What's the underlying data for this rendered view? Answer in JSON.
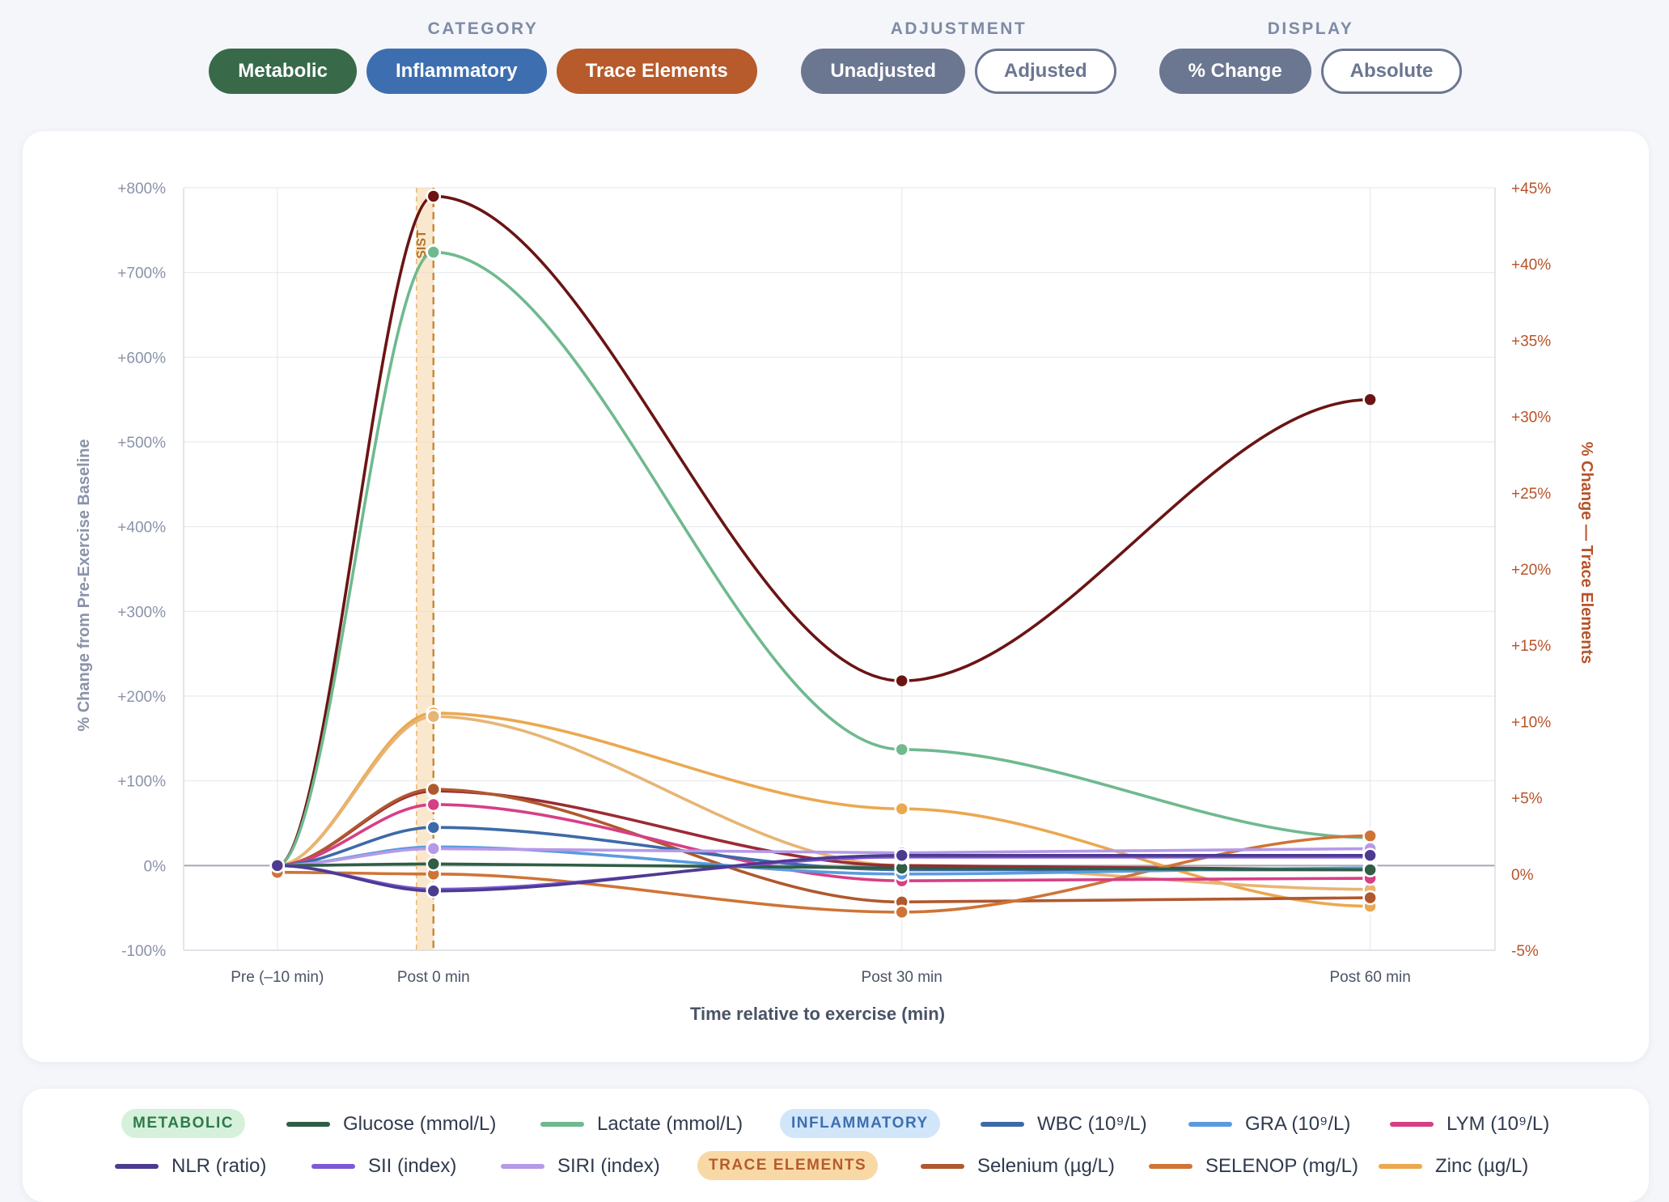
{
  "controls": {
    "category": {
      "title": "CATEGORY",
      "buttons": [
        {
          "label": "Metabolic",
          "color": "#386a4a"
        },
        {
          "label": "Inflammatory",
          "color": "#3d6fb0"
        },
        {
          "label": "Trace Elements",
          "color": "#b75b2c"
        }
      ]
    },
    "adjustment": {
      "title": "ADJUSTMENT",
      "buttons": [
        {
          "label": "Unadjusted",
          "state": "active"
        },
        {
          "label": "Adjusted",
          "state": "inactive"
        }
      ]
    },
    "display": {
      "title": "DISPLAY",
      "buttons": [
        {
          "label": "% Change",
          "state": "active"
        },
        {
          "label": "Absolute",
          "state": "inactive"
        }
      ]
    },
    "active_color": "#6b7691"
  },
  "chart_data": {
    "type": "line",
    "xlabel": "Time relative to exercise (min)",
    "ylabel_left": "% Change from Pre-Exercise Baseline",
    "ylabel_right": "% Change — Trace Elements",
    "categories": [
      "Pre (–10 min)",
      "Post 0 min",
      "Post 30 min",
      "Post 60 min"
    ],
    "x_minutes": [
      -10,
      0,
      30,
      60
    ],
    "ylim_left": [
      -100,
      800
    ],
    "ylim_right": [
      -5,
      45
    ],
    "left_ticks": [
      "-100%",
      "0%",
      "+100%",
      "+200%",
      "+300%",
      "+400%",
      "+500%",
      "+600%",
      "+700%",
      "+800%"
    ],
    "left_tick_values": [
      -100,
      0,
      100,
      200,
      300,
      400,
      500,
      600,
      700,
      800
    ],
    "right_ticks": [
      "-5%",
      "0%",
      "+5%",
      "+10%",
      "+15%",
      "+20%",
      "+25%",
      "+30%",
      "+35%",
      "+40%",
      "+45%"
    ],
    "right_tick_values": [
      -5,
      0,
      5,
      10,
      15,
      20,
      25,
      30,
      35,
      40,
      45
    ],
    "annotation": {
      "label": "SIST",
      "x_minutes": 0
    },
    "grid": true,
    "series": [
      {
        "name": "Unlabeled series (dark red)",
        "axis": "left",
        "color": "#6b1414",
        "values": [
          0,
          790,
          218,
          550
        ]
      },
      {
        "name": "Lactate (mmol/L)",
        "axis": "left",
        "color": "#6fb98f",
        "values": [
          0,
          724,
          137,
          33
        ]
      },
      {
        "name": "Zinc (µg/L)",
        "axis": "left",
        "color": "#eba850",
        "values": [
          0,
          180,
          67,
          -48
        ]
      },
      {
        "name": "Unlabeled series (light orange)",
        "axis": "left",
        "color": "#e8b474",
        "values": [
          0,
          176,
          0,
          -28
        ]
      },
      {
        "name": "Unlabeled series (maroon)",
        "axis": "left",
        "color": "#9b2b35",
        "values": [
          0,
          88,
          0,
          -5
        ]
      },
      {
        "name": "Selenium (µg/L)",
        "axis": "left",
        "color": "#b0582e",
        "values": [
          0,
          90,
          -43,
          -38
        ]
      },
      {
        "name": "SELENOP (mg/L)",
        "axis": "left",
        "color": "#cf7436",
        "values": [
          -8,
          -10,
          -55,
          35
        ]
      },
      {
        "name": "LYM (10⁹/L)",
        "axis": "left",
        "color": "#d63f86",
        "values": [
          0,
          72,
          -18,
          -15
        ]
      },
      {
        "name": "WBC (10⁹/L)",
        "axis": "left",
        "color": "#3d6aa8",
        "values": [
          0,
          45,
          -5,
          -5
        ]
      },
      {
        "name": "GRA (10⁹/L)",
        "axis": "left",
        "color": "#5b9ae0",
        "values": [
          0,
          22,
          -10,
          -3
        ]
      },
      {
        "name": "SIRI (index)",
        "axis": "left",
        "color": "#b59ae8",
        "values": [
          0,
          20,
          15,
          20
        ]
      },
      {
        "name": "Glucose (mmol/L)",
        "axis": "left",
        "color": "#2f5e45",
        "values": [
          0,
          2,
          -3,
          -5
        ]
      },
      {
        "name": "SII (index)",
        "axis": "left",
        "color": "#7e58d6",
        "values": [
          0,
          -28,
          10,
          10
        ]
      },
      {
        "name": "NLR (ratio)",
        "axis": "left",
        "color": "#4d3b91",
        "values": [
          0,
          -30,
          12,
          12
        ]
      }
    ]
  },
  "legend": {
    "groups": [
      {
        "label": "METABOLIC",
        "bg": "#d5f1dc",
        "fg": "#2f7a4a",
        "items": [
          {
            "label": "Glucose (mmol/L)",
            "color": "#2f5e45"
          },
          {
            "label": "Lactate (mmol/L)",
            "color": "#6fb98f"
          }
        ]
      },
      {
        "label": "INFLAMMATORY",
        "bg": "#d2e6fa",
        "fg": "#3d6fb0",
        "items": [
          {
            "label": "WBC (10⁹/L)",
            "color": "#3d6aa8"
          },
          {
            "label": "GRA (10⁹/L)",
            "color": "#5b9ae0"
          },
          {
            "label": "LYM (10⁹/L)",
            "color": "#d63f86"
          },
          {
            "label": "NLR (ratio)",
            "color": "#4d3b91"
          },
          {
            "label": "SII (index)",
            "color": "#7e58d6"
          },
          {
            "label": "SIRI (index)",
            "color": "#b59ae8"
          }
        ]
      },
      {
        "label": "TRACE ELEMENTS",
        "bg": "#f8d9a6",
        "fg": "#b75b2c",
        "items": [
          {
            "label": "Selenium (µg/L)",
            "color": "#b0582e"
          },
          {
            "label": "SELENOP (mg/L)",
            "color": "#cf7436"
          },
          {
            "label": "Zinc (µg/L)",
            "color": "#eba850"
          }
        ]
      }
    ]
  }
}
